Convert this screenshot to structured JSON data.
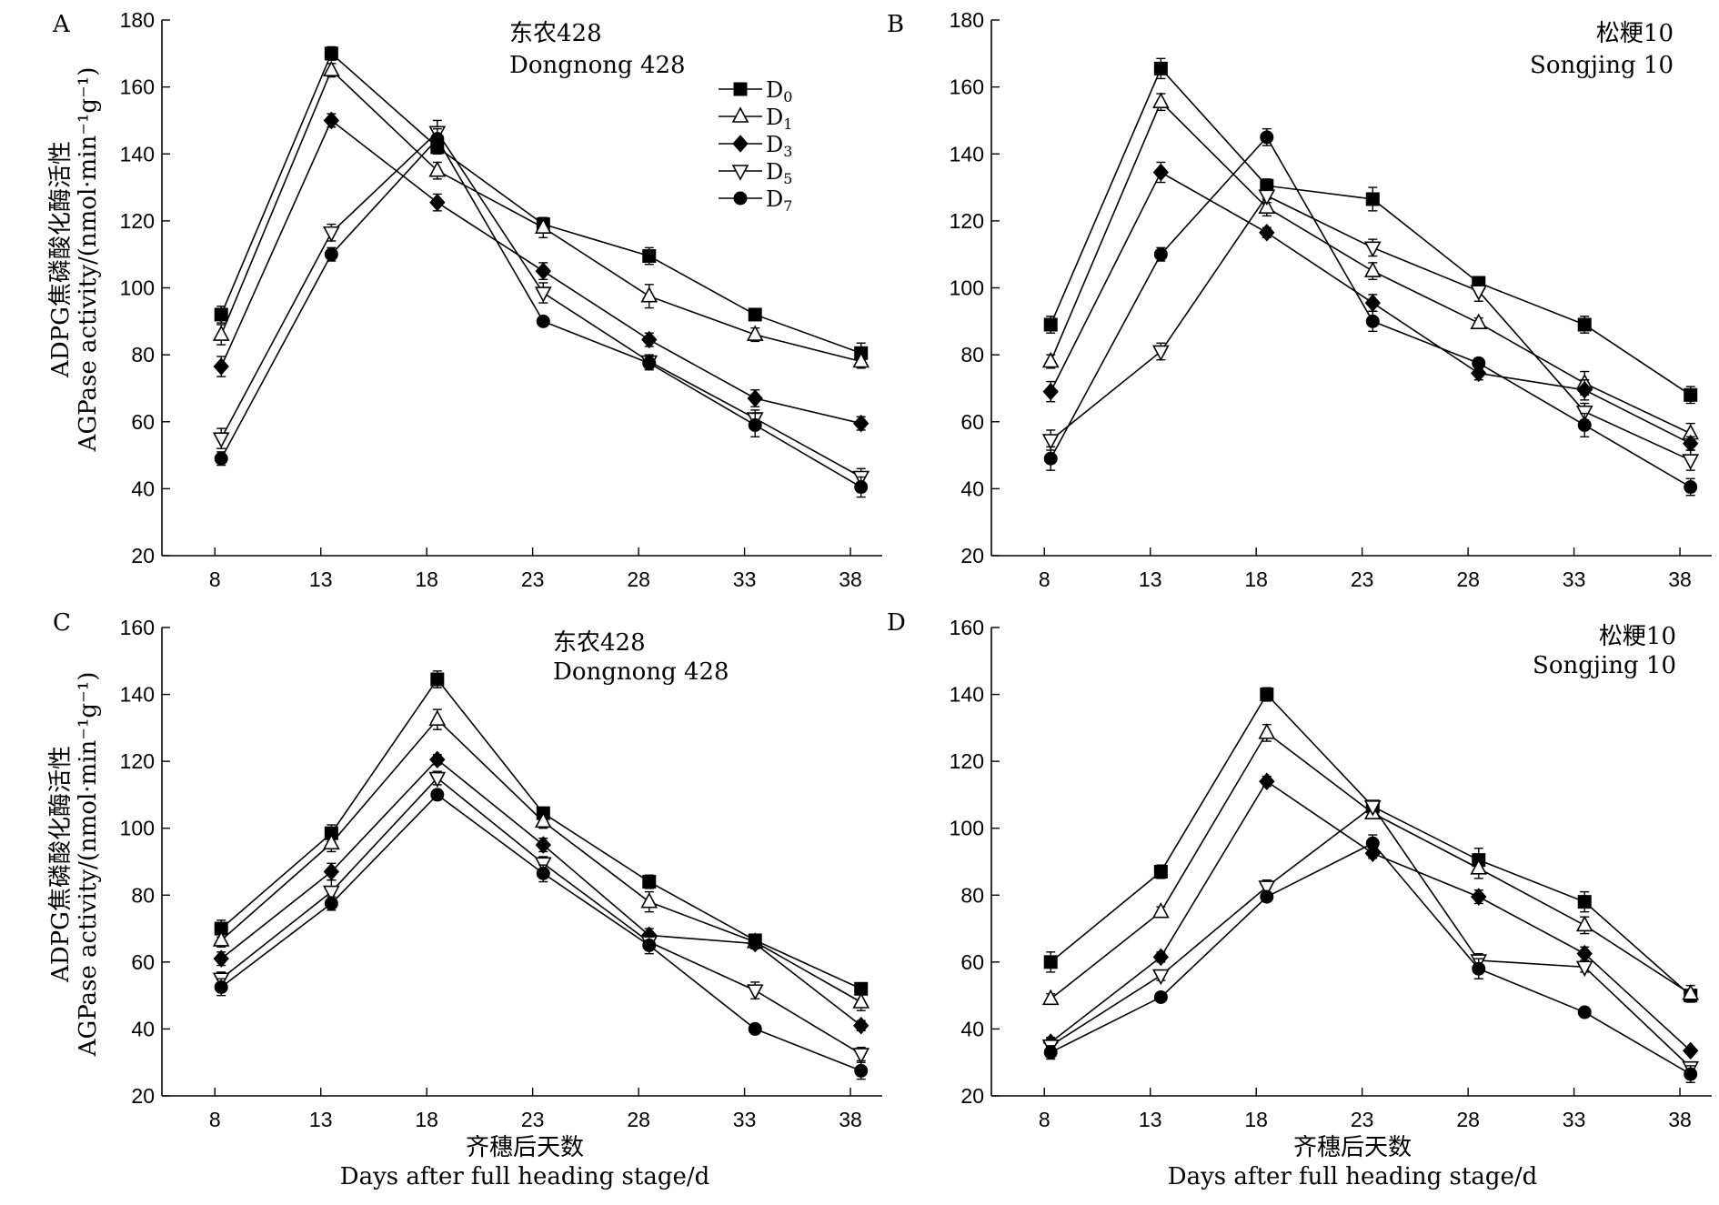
{
  "figure": {
    "y_axis_label_cn": "ADPG焦磷酸化酶活性",
    "y_axis_label_en": "AGPase activity/(nmol·min⁻¹g⁻¹)",
    "x_axis_label_cn": "齐穗后天数",
    "x_axis_label_en": "Days after full heading stage/d"
  },
  "legend": [
    "D0",
    "D1",
    "D3",
    "D5",
    "D7"
  ],
  "legend_display": [
    {
      "main": "D",
      "sub": "0"
    },
    {
      "main": "D",
      "sub": "1"
    },
    {
      "main": "D",
      "sub": "3"
    },
    {
      "main": "D",
      "sub": "5"
    },
    {
      "main": "D",
      "sub": "7"
    }
  ],
  "series_style": {
    "D0": {
      "marker": "square-filled",
      "color": "#000000"
    },
    "D1": {
      "marker": "triangle-up-open",
      "color": "#000000"
    },
    "D3": {
      "marker": "diamond-filled",
      "color": "#000000"
    },
    "D5": {
      "marker": "triangle-down-open",
      "color": "#000000"
    },
    "D7": {
      "marker": "circle-filled",
      "color": "#000000"
    }
  },
  "chart_data": [
    {
      "panel": "A",
      "type": "line",
      "title_cn": "东农428",
      "title_en": "Dongnong 428",
      "x": [
        8,
        13,
        18,
        23,
        28,
        33,
        38
      ],
      "xticks": [
        8,
        13,
        18,
        23,
        28,
        33,
        38
      ],
      "xlim": [
        5.5,
        39.5
      ],
      "ylim": [
        20,
        180
      ],
      "yticks": [
        20,
        40,
        60,
        80,
        100,
        120,
        140,
        160,
        180
      ],
      "grid": false,
      "legend_position": "top-right",
      "series": [
        {
          "name": "D0",
          "x": [
            8.3,
            13.5,
            18.5,
            23.5,
            28.5,
            33.5,
            38.5
          ],
          "values": [
            92,
            170,
            142,
            119,
            109.5,
            92,
            80.5
          ],
          "errors": [
            2.5,
            2,
            2,
            2,
            2.5,
            1.5,
            3
          ]
        },
        {
          "name": "D1",
          "x": [
            8.3,
            13.5,
            18.5,
            23.5,
            28.5,
            33.5,
            38.5
          ],
          "values": [
            86,
            165,
            135,
            118,
            97.5,
            86,
            78
          ],
          "errors": [
            3,
            2,
            2.5,
            3,
            3.5,
            2,
            2
          ]
        },
        {
          "name": "D3",
          "x": [
            8.3,
            13.5,
            18.5,
            23.5,
            28.5,
            33.5,
            38.5
          ],
          "values": [
            76.5,
            150,
            125.5,
            105,
            84.5,
            67,
            59.5
          ],
          "errors": [
            3,
            2,
            2.5,
            2.5,
            2,
            2.5,
            2
          ]
        },
        {
          "name": "D5",
          "x": [
            8.3,
            13.5,
            18.5,
            23.5,
            28.5,
            33.5,
            38.5
          ],
          "values": [
            55,
            116.5,
            146.5,
            98.5,
            78,
            61,
            43.5
          ],
          "errors": [
            3,
            2.5,
            3.5,
            3,
            2,
            2.5,
            2.5
          ]
        },
        {
          "name": "D7",
          "x": [
            8.3,
            13.5,
            18.5,
            23.5,
            28.5,
            33.5,
            38.5
          ],
          "values": [
            49,
            110,
            144.5,
            90,
            77.5,
            59,
            40.5
          ],
          "errors": [
            2,
            2,
            3,
            1,
            2,
            3.5,
            3
          ]
        }
      ]
    },
    {
      "panel": "B",
      "type": "line",
      "title_cn": "松粳10",
      "title_en": "Songjing 10",
      "x": [
        8,
        13,
        18,
        23,
        28,
        33,
        38
      ],
      "xticks": [
        8,
        13,
        18,
        23,
        28,
        33,
        38
      ],
      "xlim": [
        5.5,
        39.5
      ],
      "ylim": [
        20,
        180
      ],
      "yticks": [
        20,
        40,
        60,
        80,
        100,
        120,
        140,
        160,
        180
      ],
      "grid": false,
      "series": [
        {
          "name": "D0",
          "x": [
            8.3,
            13.5,
            18.5,
            23.5,
            28.5,
            33.5,
            38.5
          ],
          "values": [
            89,
            165.5,
            130.5,
            126.5,
            101.5,
            89,
            68
          ],
          "errors": [
            2.5,
            3,
            2,
            3.5,
            1.5,
            2.5,
            2.5
          ]
        },
        {
          "name": "D1",
          "x": [
            8.3,
            13.5,
            18.5,
            23.5,
            28.5,
            33.5,
            38.5
          ],
          "values": [
            78,
            155.5,
            124,
            105,
            89.5,
            71.5,
            56.5
          ],
          "errors": [
            2,
            2.5,
            2.5,
            2.5,
            1.5,
            3.5,
            3
          ]
        },
        {
          "name": "D3",
          "x": [
            8.3,
            13.5,
            18.5,
            23.5,
            28.5,
            33.5,
            38.5
          ],
          "values": [
            69,
            134.5,
            116.5,
            95.5,
            74.5,
            69.5,
            53.5
          ],
          "errors": [
            3,
            3,
            1.5,
            2.5,
            2,
            3,
            2
          ]
        },
        {
          "name": "D5",
          "x": [
            8.3,
            13.5,
            18.5,
            23.5,
            28.5,
            33.5,
            38.5
          ],
          "values": [
            54.5,
            81,
            127.5,
            112,
            99,
            63,
            48.5
          ],
          "errors": [
            3,
            2.5,
            2,
            2.5,
            3,
            2.5,
            3
          ]
        },
        {
          "name": "D7",
          "x": [
            8.3,
            13.5,
            18.5,
            23.5,
            28.5,
            33.5,
            38.5
          ],
          "values": [
            49,
            110,
            145,
            90,
            77.5,
            59,
            40.5
          ],
          "errors": [
            3.5,
            2,
            2.5,
            3,
            1.5,
            3.5,
            2.5
          ]
        }
      ]
    },
    {
      "panel": "C",
      "type": "line",
      "title_cn": "东农428",
      "title_en": "Dongnong 428",
      "x": [
        8,
        13,
        18,
        23,
        28,
        33,
        38
      ],
      "xticks": [
        8,
        13,
        18,
        23,
        28,
        33,
        38
      ],
      "xlim": [
        5.5,
        39.5
      ],
      "ylim": [
        20,
        160
      ],
      "yticks": [
        20,
        40,
        60,
        80,
        100,
        120,
        140,
        160
      ],
      "grid": false,
      "series": [
        {
          "name": "D0",
          "x": [
            8.3,
            13.5,
            18.5,
            23.5,
            28.5,
            33.5,
            38.5
          ],
          "values": [
            70,
            98.5,
            144.5,
            104.5,
            84,
            66.5,
            52
          ],
          "errors": [
            2.5,
            2.5,
            2.5,
            1,
            2,
            1.5,
            1.5
          ]
        },
        {
          "name": "D1",
          "x": [
            8.3,
            13.5,
            18.5,
            23.5,
            28.5,
            33.5,
            38.5
          ],
          "values": [
            66.5,
            95.5,
            132.5,
            102,
            78,
            66,
            48
          ],
          "errors": [
            2,
            2.5,
            3,
            2,
            3,
            2,
            2.5
          ]
        },
        {
          "name": "D3",
          "x": [
            8.3,
            13.5,
            18.5,
            23.5,
            28.5,
            33.5,
            38.5
          ],
          "values": [
            61,
            87,
            120.5,
            95,
            68,
            65.5,
            41
          ],
          "errors": [
            2,
            2.5,
            1.5,
            2,
            2,
            1.5,
            1.5
          ]
        },
        {
          "name": "D5",
          "x": [
            8.3,
            13.5,
            18.5,
            23.5,
            28.5,
            33.5,
            38.5
          ],
          "values": [
            55,
            81,
            115,
            89.5,
            66,
            51.5,
            32.5
          ],
          "errors": [
            2,
            3.5,
            2,
            2,
            2,
            2.5,
            2
          ]
        },
        {
          "name": "D7",
          "x": [
            8.3,
            13.5,
            18.5,
            23.5,
            28.5,
            33.5,
            38.5
          ],
          "values": [
            52.5,
            77.5,
            110,
            86.5,
            65,
            40,
            27.5
          ],
          "errors": [
            2.5,
            2,
            1.5,
            2.5,
            2.5,
            1,
            2.5
          ]
        }
      ]
    },
    {
      "panel": "D",
      "type": "line",
      "title_cn": "松粳10",
      "title_en": "Songjing 10",
      "x": [
        8,
        13,
        18,
        23,
        28,
        33,
        38
      ],
      "xticks": [
        8,
        13,
        18,
        23,
        28,
        33,
        38
      ],
      "xlim": [
        5.5,
        39.5
      ],
      "ylim": [
        20,
        160
      ],
      "yticks": [
        20,
        40,
        60,
        80,
        100,
        120,
        140,
        160
      ],
      "grid": false,
      "series": [
        {
          "name": "D0",
          "x": [
            8.3,
            13.5,
            18.5,
            23.5,
            28.5,
            33.5,
            38.5
          ],
          "values": [
            60,
            87,
            140,
            106.5,
            90.5,
            78,
            50
          ],
          "errors": [
            3,
            2,
            2,
            1.5,
            3.5,
            3,
            1.5
          ]
        },
        {
          "name": "D1",
          "x": [
            8.3,
            13.5,
            18.5,
            23.5,
            28.5,
            33.5,
            38.5
          ],
          "values": [
            49,
            75,
            128.5,
            104.5,
            88,
            71,
            50.5
          ],
          "errors": [
            1.5,
            1.5,
            2.5,
            1.5,
            3,
            2.5,
            2.5
          ]
        },
        {
          "name": "D3",
          "x": [
            8.3,
            13.5,
            18.5,
            23.5,
            28.5,
            33.5,
            38.5
          ],
          "values": [
            36,
            61.5,
            114,
            92.5,
            79.5,
            62.5,
            33.5
          ],
          "errors": [
            1.5,
            1.5,
            1.5,
            1.5,
            2,
            2,
            1
          ]
        },
        {
          "name": "D5",
          "x": [
            8.3,
            13.5,
            18.5,
            23.5,
            28.5,
            33.5,
            38.5
          ],
          "values": [
            35,
            56,
            82.5,
            106.5,
            60.5,
            58.5,
            28.5
          ],
          "errors": [
            1.5,
            1.5,
            2,
            1.5,
            2,
            1.5,
            1.5
          ]
        },
        {
          "name": "D7",
          "x": [
            8.3,
            13.5,
            18.5,
            23.5,
            28.5,
            33.5,
            38.5
          ],
          "values": [
            33,
            49.5,
            79.5,
            95.5,
            58,
            45,
            26.5
          ],
          "errors": [
            2,
            1,
            1,
            2.5,
            3,
            1,
            2.5
          ]
        }
      ]
    }
  ]
}
